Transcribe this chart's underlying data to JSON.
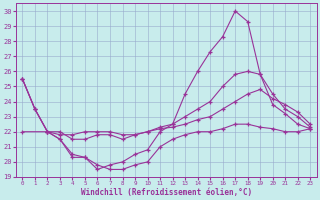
{
  "xlabel": "Windchill (Refroidissement éolien,°C)",
  "xlim": [
    -0.5,
    23.5
  ],
  "ylim": [
    19,
    30.5
  ],
  "yticks": [
    19,
    20,
    21,
    22,
    23,
    24,
    25,
    26,
    27,
    28,
    29,
    30
  ],
  "xticks": [
    0,
    1,
    2,
    3,
    4,
    5,
    6,
    7,
    8,
    9,
    10,
    11,
    12,
    13,
    14,
    15,
    16,
    17,
    18,
    19,
    20,
    21,
    22,
    23
  ],
  "bg": "#c8ecec",
  "grid_color": "#99aacc",
  "lc": "#993399",
  "lines": [
    {
      "x": [
        0,
        1,
        2,
        3,
        4,
        5,
        6,
        7,
        8,
        9,
        10,
        11,
        12,
        13,
        14,
        15,
        16,
        17,
        18,
        19,
        20,
        21,
        22,
        23
      ],
      "y": [
        25.5,
        23.5,
        22.0,
        21.5,
        20.3,
        20.3,
        19.5,
        19.8,
        20.0,
        20.5,
        20.8,
        22.0,
        22.5,
        24.5,
        26.0,
        27.3,
        28.3,
        30.0,
        29.3,
        25.8,
        23.8,
        23.2,
        22.5,
        22.2
      ]
    },
    {
      "x": [
        0,
        1,
        2,
        3,
        4,
        5,
        6,
        7,
        8,
        9,
        10,
        11,
        12,
        13,
        14,
        15,
        16,
        17,
        18,
        19,
        20,
        21,
        22,
        23
      ],
      "y": [
        25.5,
        23.5,
        22.0,
        22.0,
        21.5,
        21.5,
        21.8,
        21.8,
        21.5,
        21.8,
        22.0,
        22.3,
        22.5,
        23.0,
        23.5,
        24.0,
        25.0,
        25.8,
        26.0,
        25.8,
        24.5,
        23.5,
        23.0,
        22.3
      ]
    },
    {
      "x": [
        0,
        1,
        2,
        3,
        4,
        5,
        6,
        7,
        8,
        9,
        10,
        11,
        12,
        13,
        14,
        15,
        16,
        17,
        18,
        19,
        20,
        21,
        22,
        23
      ],
      "y": [
        25.5,
        23.5,
        22.0,
        21.8,
        21.8,
        22.0,
        22.0,
        22.0,
        21.8,
        21.8,
        22.0,
        22.2,
        22.3,
        22.5,
        22.8,
        23.0,
        23.5,
        24.0,
        24.5,
        24.8,
        24.2,
        23.8,
        23.3,
        22.5
      ]
    },
    {
      "x": [
        0,
        2,
        3,
        4,
        5,
        6,
        7,
        8,
        9,
        10,
        11,
        12,
        13,
        14,
        15,
        16,
        17,
        18,
        19,
        20,
        21,
        22,
        23
      ],
      "y": [
        22.0,
        22.0,
        21.5,
        20.5,
        20.3,
        19.8,
        19.5,
        19.5,
        19.8,
        20.0,
        21.0,
        21.5,
        21.8,
        22.0,
        22.0,
        22.2,
        22.5,
        22.5,
        22.3,
        22.2,
        22.0,
        22.0,
        22.2
      ]
    }
  ]
}
